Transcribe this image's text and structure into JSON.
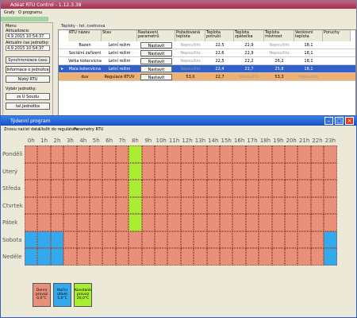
{
  "back_window": {
    "title": "Adéat RTU Control - 1.12.3.38",
    "menu": [
      "Grafy",
      "O programu"
    ],
    "left_panel": {
      "heading": "Menu",
      "update_label": "Aktualizace:",
      "update_value": "4.9.2015 10:54:37",
      "time_label": "Aktuální čas jednotky:",
      "time_value": "4.9.2015 10:54:37",
      "buttons": [
        "Synchronizace času",
        "Informace o jednotce",
        "Nízký RTU"
      ],
      "select_label": "Výběr jednotky:",
      "units": [
        "zs U Soudu",
        "tel.Jednotka"
      ]
    },
    "tab": "Teploty - tel. cvetnova",
    "table": {
      "headers": [
        "RTU název",
        "Stav",
        "Nastavení parametrů",
        "Požadovaná teplota",
        "Teplota potrubí",
        "Teplota zpátečka",
        "Teplota místnost",
        "Venkovní teplota",
        "Poruchy"
      ],
      "rows": [
        [
          "Bazen",
          "Letní režim",
          "Nastavit",
          "Nepoužito",
          "22,5",
          "22,9",
          "Nepoužito",
          "18,1"
        ],
        [
          "Sociální zařízení",
          "Letní režim",
          "Nastavit",
          "Nepoužito",
          "22,6",
          "22,9",
          "Nepoužito",
          "18,1"
        ],
        [
          "Velka kotecvicna",
          "Letní režim",
          "Nastavit",
          "Nepoužito",
          "22,5",
          "22,2",
          "26,2",
          "18,1"
        ],
        [
          "Mala kotecvicna",
          "Letní režim",
          "Nastavit",
          "Nepoužito",
          "22,4",
          "22,7",
          "25,8",
          "18,1"
        ],
        [
          "duv",
          "Regulace RTUV",
          "Nastavit",
          "53,0",
          "22,7",
          "Nepoužito",
          "53,3",
          "Nepoužito"
        ]
      ]
    }
  },
  "front_window": {
    "title": "Týdenní program",
    "menu": [
      "Znovu načíst data",
      "Uložit do regulátoru",
      "Parametry RTU"
    ],
    "hours": [
      "0h",
      "1h",
      "2h",
      "3h",
      "4h",
      "5h",
      "6h",
      "7h",
      "8h",
      "9h",
      "10h",
      "11h",
      "12h",
      "13h",
      "14h",
      "15h",
      "16h",
      "17h",
      "18h",
      "19h",
      "20h",
      "21h",
      "22h",
      "23h"
    ],
    "days": [
      "Pondělí",
      "Úterý",
      "Středa",
      "Čtvrtek",
      "Pátek",
      "Sobota",
      "Neděle"
    ],
    "modes": [
      {
        "label": "Denní provoz 0,0°C",
        "color": "#e8907a"
      },
      {
        "label": "Noční útlum 5,0°C",
        "color": "#33aaee"
      },
      {
        "label": "Konstantní provoz 20,0°C",
        "color": "#aaee33"
      }
    ],
    "schedule": [
      [
        0,
        0,
        0,
        0,
        0,
        0,
        0,
        0,
        2,
        0,
        0,
        0,
        0,
        0,
        0,
        0,
        0,
        0,
        0,
        0,
        0,
        0,
        0,
        0
      ],
      [
        0,
        0,
        0,
        0,
        0,
        0,
        0,
        0,
        2,
        0,
        0,
        0,
        0,
        0,
        0,
        0,
        0,
        0,
        0,
        0,
        0,
        0,
        0,
        0
      ],
      [
        0,
        0,
        0,
        0,
        0,
        0,
        0,
        0,
        2,
        0,
        0,
        0,
        0,
        0,
        0,
        0,
        0,
        0,
        0,
        0,
        0,
        0,
        0,
        0
      ],
      [
        0,
        0,
        0,
        0,
        0,
        0,
        0,
        0,
        2,
        0,
        0,
        0,
        0,
        0,
        0,
        0,
        0,
        0,
        0,
        0,
        0,
        0,
        0,
        0
      ],
      [
        0,
        0,
        0,
        0,
        0,
        0,
        0,
        0,
        2,
        0,
        0,
        0,
        0,
        0,
        0,
        0,
        0,
        0,
        0,
        0,
        0,
        0,
        0,
        0
      ],
      [
        1,
        1,
        1,
        0,
        0,
        0,
        0,
        0,
        0,
        0,
        0,
        0,
        0,
        0,
        0,
        0,
        0,
        0,
        0,
        0,
        0,
        0,
        0,
        1
      ],
      [
        1,
        1,
        1,
        0,
        0,
        0,
        0,
        0,
        0,
        0,
        0,
        0,
        0,
        0,
        0,
        0,
        0,
        0,
        0,
        0,
        0,
        0,
        0,
        1
      ]
    ]
  }
}
